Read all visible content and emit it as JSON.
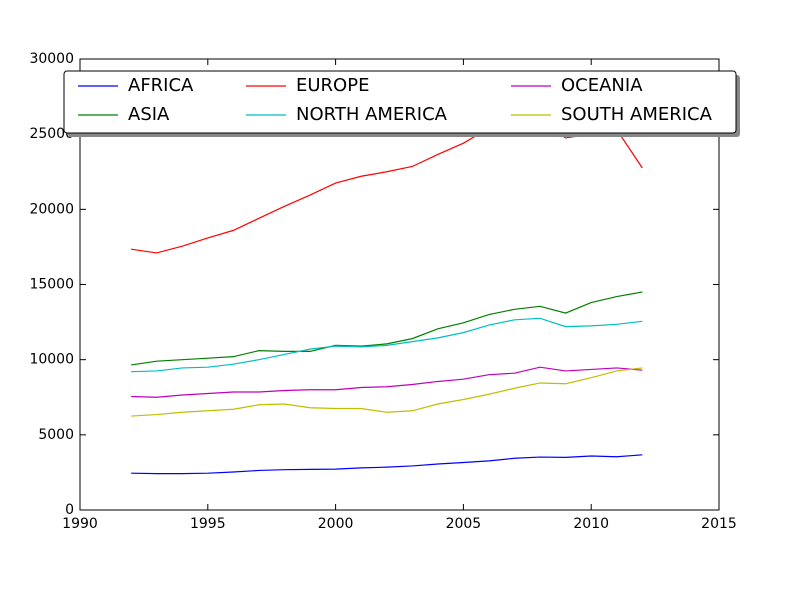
{
  "chart_data": {
    "type": "line",
    "x": [
      1992,
      1993,
      1994,
      1995,
      1996,
      1997,
      1998,
      1999,
      2000,
      2001,
      2002,
      2003,
      2004,
      2005,
      2006,
      2007,
      2008,
      2009,
      2010,
      2011,
      2012
    ],
    "series": [
      {
        "name": "AFRICA",
        "color": "#0000ff",
        "values": [
          2450,
          2420,
          2420,
          2450,
          2530,
          2630,
          2680,
          2700,
          2720,
          2800,
          2850,
          2930,
          3060,
          3160,
          3270,
          3440,
          3520,
          3500,
          3590,
          3540,
          3670
        ]
      },
      {
        "name": "ASIA",
        "color": "#008000",
        "values": [
          9650,
          9900,
          10000,
          10100,
          10200,
          10600,
          10550,
          10550,
          10950,
          10900,
          11050,
          11400,
          12050,
          12450,
          13000,
          13350,
          13550,
          13100,
          13800,
          14200,
          14500
        ]
      },
      {
        "name": "EUROPE",
        "color": "#ff0000",
        "values": [
          17350,
          17100,
          17550,
          18100,
          18600,
          19400,
          20200,
          20950,
          21750,
          22200,
          22500,
          22850,
          23650,
          24400,
          25400,
          26000,
          25800,
          24750,
          25000,
          25300,
          22750
        ]
      },
      {
        "name": "NORTH AMERICA",
        "color": "#00bfbf",
        "values": [
          9200,
          9250,
          9450,
          9500,
          9700,
          10000,
          10350,
          10700,
          10900,
          10850,
          10950,
          11200,
          11450,
          11800,
          12300,
          12650,
          12750,
          12200,
          12250,
          12350,
          12550
        ]
      },
      {
        "name": "OCEANIA",
        "color": "#bf00bf",
        "values": [
          7550,
          7500,
          7650,
          7750,
          7850,
          7850,
          7950,
          8000,
          8000,
          8150,
          8200,
          8350,
          8550,
          8700,
          9000,
          9100,
          9500,
          9250,
          9350,
          9450,
          9300
        ]
      },
      {
        "name": "SOUTH AMERICA",
        "color": "#bfbf00",
        "values": [
          6250,
          6350,
          6500,
          6600,
          6700,
          7000,
          7050,
          6800,
          6750,
          6750,
          6500,
          6600,
          7050,
          7350,
          7700,
          8100,
          8450,
          8400,
          8800,
          9250,
          9450
        ]
      }
    ],
    "xlim": [
      1990,
      2015
    ],
    "xticks": [
      1990,
      1995,
      2000,
      2005,
      2010,
      2015
    ],
    "ylim": [
      0,
      30000
    ],
    "yticks": [
      0,
      5000,
      10000,
      15000,
      20000,
      25000,
      30000
    ],
    "legend": "upper center",
    "legend_columns": 3
  }
}
